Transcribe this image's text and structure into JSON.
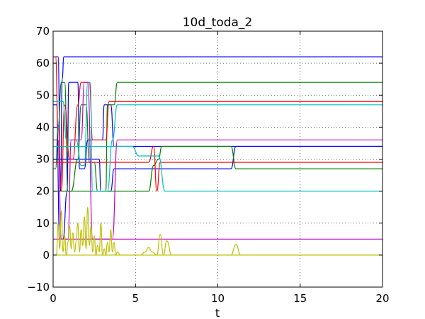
{
  "chart_data": {
    "type": "line",
    "title": "10d_toda_2",
    "xlabel": "t",
    "ylabel": "",
    "xlim": [
      0,
      20
    ],
    "ylim": [
      -10,
      70
    ],
    "xticks": [
      0,
      5,
      10,
      15,
      20
    ],
    "yticks": [
      -10,
      0,
      10,
      20,
      30,
      40,
      50,
      60,
      70
    ],
    "xtick_labels": [
      "0",
      "5",
      "10",
      "15",
      "20"
    ],
    "ytick_labels": [
      "−10",
      "0",
      "10",
      "20",
      "30",
      "40",
      "50",
      "60",
      "70"
    ],
    "grid": true,
    "colors": {
      "blue": "#0000ff",
      "green": "#008000",
      "red": "#ff0000",
      "cyan": "#00bfbf",
      "magenta": "#bf00bf",
      "yellow": "#bfbf00"
    },
    "series": [
      {
        "color": "#0000ff",
        "x": [
          0,
          0.3,
          0.45,
          0.55,
          0.65,
          20
        ],
        "y": [
          62,
          62,
          20,
          55,
          62,
          62
        ]
      },
      {
        "color": "#0000ff",
        "x": [
          0,
          0.2,
          0.4,
          0.6,
          0.85,
          0.95,
          1.5,
          1.6,
          1.9,
          2.1,
          3.0,
          3.1,
          3.5,
          3.7,
          20
        ],
        "y": [
          47,
          47,
          5,
          5,
          20,
          54,
          54,
          27,
          27,
          36,
          36,
          47,
          47,
          34,
          34
        ]
      },
      {
        "color": "#0000ff",
        "x": [
          0,
          2.8,
          2.9,
          3.5,
          3.7,
          10.8,
          11.1,
          20
        ],
        "y": [
          30,
          30,
          20,
          20,
          27,
          27,
          34,
          34
        ]
      },
      {
        "color": "#008000",
        "x": [
          0,
          0.15,
          0.3,
          0.5,
          0.7,
          0.9,
          1.1,
          1.5,
          1.7,
          2.0,
          2.2,
          2.5,
          2.7,
          3.2,
          3.3,
          3.7,
          3.9,
          20
        ],
        "y": [
          27,
          27,
          40,
          54,
          54,
          20,
          20,
          30,
          47,
          47,
          29,
          29,
          20,
          20,
          47,
          47,
          54,
          54
        ]
      },
      {
        "color": "#008000",
        "x": [
          0,
          5.8,
          6.1,
          6.4,
          6.6,
          10.8,
          11.1,
          20
        ],
        "y": [
          20,
          20,
          28,
          30,
          34,
          34,
          27,
          27
        ]
      },
      {
        "color": "#ff0000",
        "x": [
          0,
          0.15,
          0.3,
          0.5,
          0.7,
          1.0,
          1.2,
          1.5,
          1.7,
          2.2,
          2.4,
          3.2,
          3.4,
          20
        ],
        "y": [
          62,
          62,
          40,
          20,
          47,
          30,
          30,
          47,
          54,
          54,
          36,
          36,
          48,
          48
        ]
      },
      {
        "color": "#ff0000",
        "x": [
          0,
          3.6,
          3.9,
          5.8,
          6.1,
          6.3,
          6.5,
          20
        ],
        "y": [
          29,
          29,
          29,
          29,
          34,
          20,
          29,
          29
        ]
      },
      {
        "color": "#00bfbf",
        "x": [
          0,
          0.6,
          0.8,
          1.4,
          1.7,
          1.9,
          2.1,
          2.25,
          2.4,
          2.6,
          3.3,
          3.6,
          3.9,
          20
        ],
        "y": [
          48,
          48,
          36,
          36,
          28,
          28,
          54,
          54,
          20,
          20,
          20,
          36,
          47,
          47
        ]
      },
      {
        "color": "#00bfbf",
        "x": [
          0,
          4.8,
          5.2,
          6.4,
          6.8,
          20
        ],
        "y": [
          34,
          34,
          31,
          31,
          20,
          20
        ]
      },
      {
        "color": "#bf00bf",
        "x": [
          0,
          0.3,
          0.5,
          0.9,
          1.1,
          1.7,
          1.9,
          2.1,
          2.4,
          3.6,
          3.9,
          20
        ],
        "y": [
          36,
          36,
          5,
          5,
          36,
          36,
          54,
          54,
          5,
          5,
          36,
          36
        ]
      },
      {
        "color": "#bf00bf",
        "x": [
          0,
          20
        ],
        "y": [
          5,
          5
        ]
      },
      {
        "color": "#bfbf00",
        "x": [
          0,
          0.2,
          0.3,
          0.4,
          0.5,
          0.6,
          0.7,
          0.8,
          0.9,
          1.0,
          1.1,
          1.2,
          1.3,
          1.4,
          1.5,
          1.6,
          1.7,
          1.8,
          1.9,
          2.0,
          2.1,
          2.2,
          2.3,
          2.4,
          2.5,
          2.6,
          2.7,
          2.8,
          2.9,
          3.0,
          3.1,
          3.2,
          3.3,
          3.4,
          3.5,
          3.6,
          3.7,
          3.8,
          3.9,
          4.1,
          20
        ],
        "y": [
          0,
          0,
          10,
          2,
          14,
          1,
          6,
          0,
          4,
          9,
          2,
          7,
          1,
          4,
          10,
          1,
          8,
          3,
          12,
          2,
          15,
          3,
          9,
          1,
          6,
          0,
          3,
          1,
          10,
          0,
          2,
          0,
          4,
          1,
          8,
          1,
          4,
          0,
          1,
          0,
          0
        ]
      },
      {
        "color": "#bfbf00",
        "x": [
          0,
          5.3,
          5.6,
          5.8,
          6.0,
          6.3,
          6.5,
          6.7,
          6.9,
          7.2,
          10.8,
          11.1,
          11.4,
          20
        ],
        "y": [
          0,
          0,
          1,
          2.5,
          1,
          0,
          6.5,
          0,
          4.5,
          0,
          0,
          3.3,
          0,
          0
        ]
      }
    ]
  }
}
